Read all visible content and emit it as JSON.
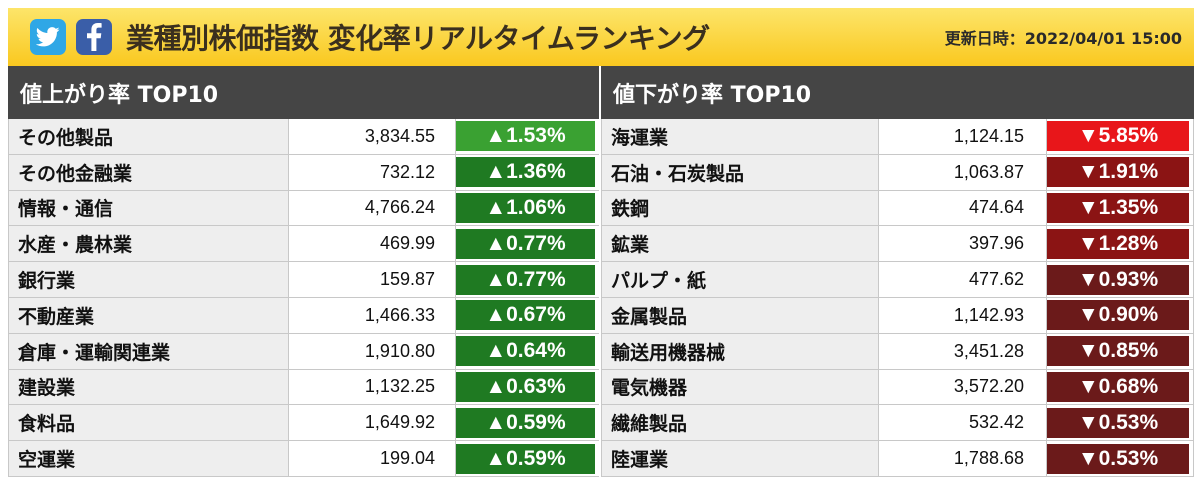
{
  "header": {
    "title": "業種別株価指数 変化率リアルタイムランキング",
    "updated": "更新日時：2022/04/01 15:00",
    "icons": [
      "twitter-icon",
      "facebook-icon"
    ]
  },
  "colors": {
    "header_bg": "#f9c81f",
    "panel_title_bg": "#454545",
    "up_strong": "#3aa132",
    "up": "#1f7a22",
    "down_strong": "#e8161a",
    "down": "#8b1414",
    "down_dark": "#6b1a1a"
  },
  "gainers": {
    "title": "値上がり率 TOP10",
    "rows": [
      {
        "name": "その他製品",
        "value": "3,834.55",
        "change": "▲1.53%"
      },
      {
        "name": "その他金融業",
        "value": "732.12",
        "change": "▲1.36%"
      },
      {
        "name": "情報・通信",
        "value": "4,766.24",
        "change": "▲1.06%"
      },
      {
        "name": "水産・農林業",
        "value": "469.99",
        "change": "▲0.77%"
      },
      {
        "name": "銀行業",
        "value": "159.87",
        "change": "▲0.77%"
      },
      {
        "name": "不動産業",
        "value": "1,466.33",
        "change": "▲0.67%"
      },
      {
        "name": "倉庫・運輸関連業",
        "value": "1,910.80",
        "change": "▲0.64%"
      },
      {
        "name": "建設業",
        "value": "1,132.25",
        "change": "▲0.63%"
      },
      {
        "name": "食料品",
        "value": "1,649.92",
        "change": "▲0.59%"
      },
      {
        "name": "空運業",
        "value": "199.04",
        "change": "▲0.59%"
      }
    ]
  },
  "losers": {
    "title": "値下がり率 TOP10",
    "rows": [
      {
        "name": "海運業",
        "value": "1,124.15",
        "change": "▼5.85%"
      },
      {
        "name": "石油・石炭製品",
        "value": "1,063.87",
        "change": "▼1.91%"
      },
      {
        "name": "鉄鋼",
        "value": "474.64",
        "change": "▼1.35%"
      },
      {
        "name": "鉱業",
        "value": "397.96",
        "change": "▼1.28%"
      },
      {
        "name": "パルプ・紙",
        "value": "477.62",
        "change": "▼0.93%"
      },
      {
        "name": "金属製品",
        "value": "1,142.93",
        "change": "▼0.90%"
      },
      {
        "name": "輸送用機器械",
        "value": "3,451.28",
        "change": "▼0.85%"
      },
      {
        "name": "電気機器",
        "value": "3,572.20",
        "change": "▼0.68%"
      },
      {
        "name": "繊維製品",
        "value": "532.42",
        "change": "▼0.53%"
      },
      {
        "name": "陸運業",
        "value": "1,788.68",
        "change": "▼0.53%"
      }
    ]
  }
}
